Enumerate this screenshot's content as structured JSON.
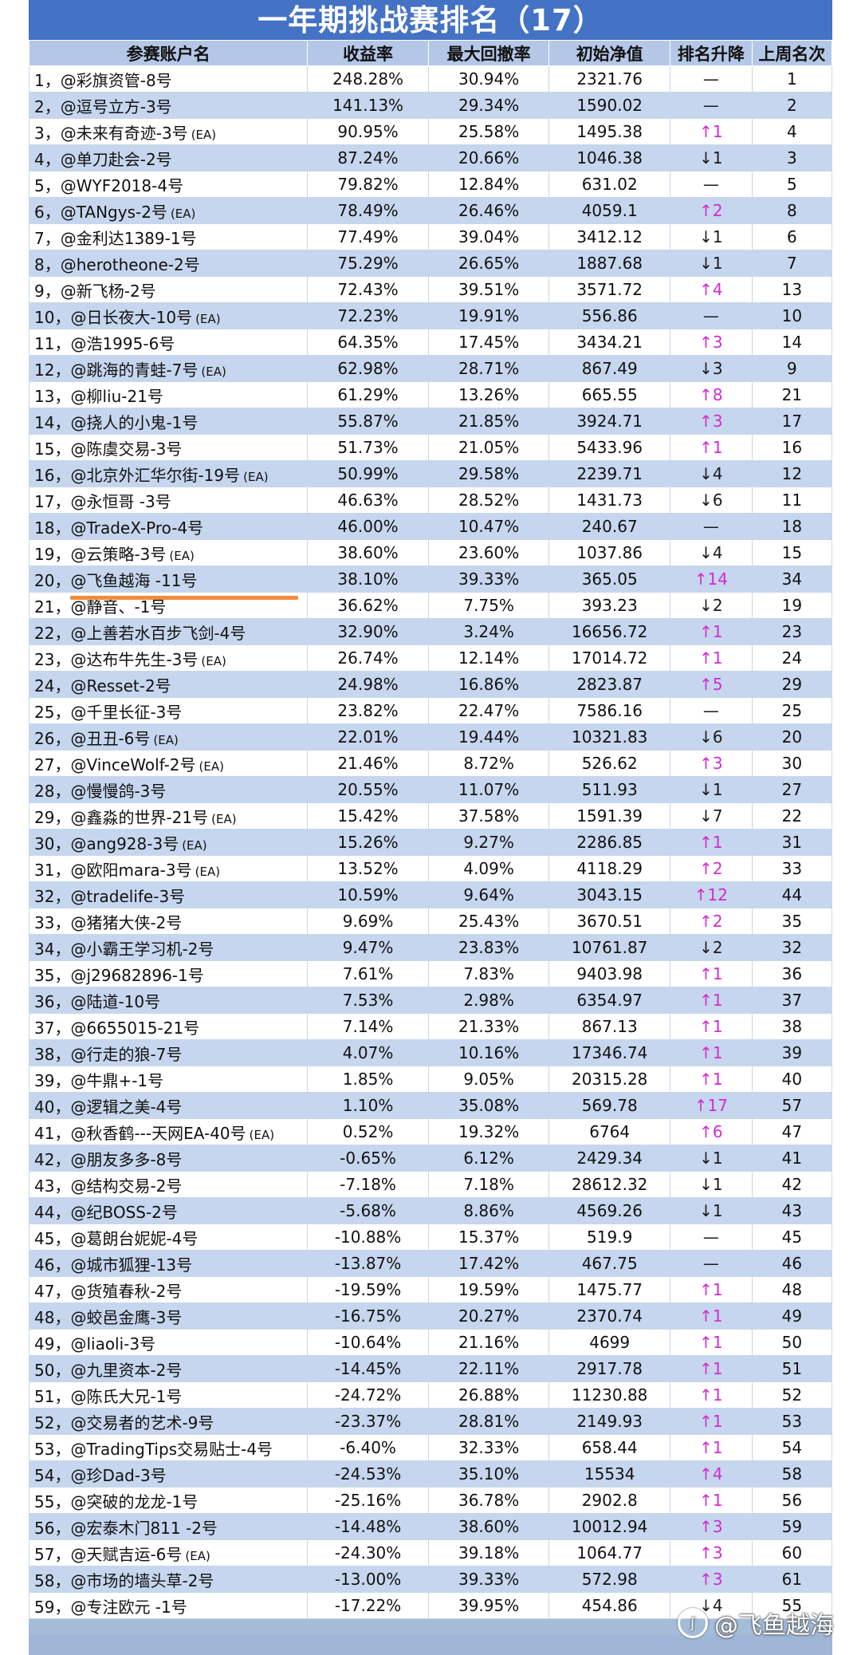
{
  "title": "一年期挑战赛排名（17）",
  "headers": [
    "参赛账户名",
    "收益率",
    "最大回撤率",
    "初始净值",
    "排名升降",
    "上周名次"
  ],
  "watermark": "@飞鱼越海",
  "rows": [
    {
      "rank": "1",
      "name": "@彩旗资管-8号",
      "ea": "",
      "ret": "248.28%",
      "dd": "30.94%",
      "nav": "2321.76",
      "chg": "—",
      "dir": "flat",
      "last": "1"
    },
    {
      "rank": "2",
      "name": "@逗号立方-3号",
      "ea": "",
      "ret": "141.13%",
      "dd": "29.34%",
      "nav": "1590.02",
      "chg": "—",
      "dir": "flat",
      "last": "2"
    },
    {
      "rank": "3",
      "name": "@未来有奇迹-3号",
      "ea": "(EA)",
      "ret": "90.95%",
      "dd": "25.58%",
      "nav": "1495.38",
      "chg": "↑1",
      "dir": "up",
      "last": "4"
    },
    {
      "rank": "4",
      "name": "@单刀赴会-2号",
      "ea": "",
      "ret": "87.24%",
      "dd": "20.66%",
      "nav": "1046.38",
      "chg": "↓1",
      "dir": "down",
      "last": "3"
    },
    {
      "rank": "5",
      "name": "@WYF2018-4号",
      "ea": "",
      "ret": "79.82%",
      "dd": "12.84%",
      "nav": "631.02",
      "chg": "—",
      "dir": "flat",
      "last": "5"
    },
    {
      "rank": "6",
      "name": "@TANgys-2号",
      "ea": "(EA)",
      "ret": "78.49%",
      "dd": "26.46%",
      "nav": "4059.1",
      "chg": "↑2",
      "dir": "up",
      "last": "8"
    },
    {
      "rank": "7",
      "name": "@金利达1389-1号",
      "ea": "",
      "ret": "77.49%",
      "dd": "39.04%",
      "nav": "3412.12",
      "chg": "↓1",
      "dir": "down",
      "last": "6"
    },
    {
      "rank": "8",
      "name": "@herotheone-2号",
      "ea": "",
      "ret": "75.29%",
      "dd": "26.65%",
      "nav": "1887.68",
      "chg": "↓1",
      "dir": "down",
      "last": "7"
    },
    {
      "rank": "9",
      "name": "@新飞杨-2号",
      "ea": "",
      "ret": "72.43%",
      "dd": "39.51%",
      "nav": "3571.72",
      "chg": "↑4",
      "dir": "up",
      "last": "13"
    },
    {
      "rank": "10",
      "name": "@日长夜大-10号",
      "ea": "(EA)",
      "ret": "72.23%",
      "dd": "19.91%",
      "nav": "556.86",
      "chg": "—",
      "dir": "flat",
      "last": "10"
    },
    {
      "rank": "11",
      "name": "@浩1995-6号",
      "ea": "",
      "ret": "64.35%",
      "dd": "17.45%",
      "nav": "3434.21",
      "chg": "↑3",
      "dir": "up",
      "last": "14"
    },
    {
      "rank": "12",
      "name": "@跳海的青蛙-7号",
      "ea": "(EA)",
      "ret": "62.98%",
      "dd": "28.71%",
      "nav": "867.49",
      "chg": "↓3",
      "dir": "down",
      "last": "9"
    },
    {
      "rank": "13",
      "name": "@柳liu-21号",
      "ea": "",
      "ret": "61.29%",
      "dd": "13.26%",
      "nav": "665.55",
      "chg": "↑8",
      "dir": "up",
      "last": "21"
    },
    {
      "rank": "14",
      "name": "@挠人的小鬼-1号",
      "ea": "",
      "ret": "55.87%",
      "dd": "21.85%",
      "nav": "3924.71",
      "chg": "↑3",
      "dir": "up",
      "last": "17"
    },
    {
      "rank": "15",
      "name": "@陈虞交易-3号",
      "ea": "",
      "ret": "51.73%",
      "dd": "21.05%",
      "nav": "5433.96",
      "chg": "↑1",
      "dir": "up",
      "last": "16"
    },
    {
      "rank": "16",
      "name": "@北京外汇华尔街-19号",
      "ea": "(EA)",
      "ret": "50.99%",
      "dd": "29.58%",
      "nav": "2239.71",
      "chg": "↓4",
      "dir": "down",
      "last": "12"
    },
    {
      "rank": "17",
      "name": "@永恒哥 -3号",
      "ea": "",
      "ret": "46.63%",
      "dd": "28.52%",
      "nav": "1431.73",
      "chg": "↓6",
      "dir": "down",
      "last": "11"
    },
    {
      "rank": "18",
      "name": "@TradeX-Pro-4号",
      "ea": "",
      "ret": "46.00%",
      "dd": "10.47%",
      "nav": "240.67",
      "chg": "—",
      "dir": "flat",
      "last": "18"
    },
    {
      "rank": "19",
      "name": "@云策略-3号",
      "ea": "(EA)",
      "ret": "38.60%",
      "dd": "23.60%",
      "nav": "1037.86",
      "chg": "↓4",
      "dir": "down",
      "last": "15"
    },
    {
      "rank": "20",
      "name": "@飞鱼越海 -11号",
      "ea": "",
      "ret": "38.10%",
      "dd": "39.33%",
      "nav": "365.05",
      "chg": "↑14",
      "dir": "up",
      "last": "34"
    },
    {
      "rank": "21",
      "name": "@静音、-1号",
      "ea": "",
      "ret": "36.62%",
      "dd": "7.75%",
      "nav": "393.23",
      "chg": "↓2",
      "dir": "down",
      "last": "19"
    },
    {
      "rank": "22",
      "name": "@上善若水百步飞剑-4号",
      "ea": "",
      "ret": "32.90%",
      "dd": "3.24%",
      "nav": "16656.72",
      "chg": "↑1",
      "dir": "up",
      "last": "23"
    },
    {
      "rank": "23",
      "name": "@达布牛先生-3号",
      "ea": "(EA)",
      "ret": "26.74%",
      "dd": "12.14%",
      "nav": "17014.72",
      "chg": "↑1",
      "dir": "up",
      "last": "24"
    },
    {
      "rank": "24",
      "name": "@Resset-2号",
      "ea": "",
      "ret": "24.98%",
      "dd": "16.86%",
      "nav": "2823.87",
      "chg": "↑5",
      "dir": "up",
      "last": "29"
    },
    {
      "rank": "25",
      "name": "@千里长征-3号",
      "ea": "",
      "ret": "23.82%",
      "dd": "22.47%",
      "nav": "7586.16",
      "chg": "—",
      "dir": "flat",
      "last": "25"
    },
    {
      "rank": "26",
      "name": "@丑丑-6号",
      "ea": "(EA)",
      "ret": "22.01%",
      "dd": "19.44%",
      "nav": "10321.83",
      "chg": "↓6",
      "dir": "down",
      "last": "20"
    },
    {
      "rank": "27",
      "name": "@VinceWolf-2号",
      "ea": "(EA)",
      "ret": "21.46%",
      "dd": "8.72%",
      "nav": "526.62",
      "chg": "↑3",
      "dir": "up",
      "last": "30"
    },
    {
      "rank": "28",
      "name": "@慢慢鸽-3号",
      "ea": "",
      "ret": "20.55%",
      "dd": "11.07%",
      "nav": "511.93",
      "chg": "↓1",
      "dir": "down",
      "last": "27"
    },
    {
      "rank": "29",
      "name": "@鑫淼的世界-21号",
      "ea": "(EA)",
      "ret": "15.42%",
      "dd": "37.58%",
      "nav": "1591.39",
      "chg": "↓7",
      "dir": "down",
      "last": "22"
    },
    {
      "rank": "30",
      "name": "@ang928-3号",
      "ea": "(EA)",
      "ret": "15.26%",
      "dd": "9.27%",
      "nav": "2286.85",
      "chg": "↑1",
      "dir": "up",
      "last": "31"
    },
    {
      "rank": "31",
      "name": "@欧阳mara-3号",
      "ea": "(EA)",
      "ret": "13.52%",
      "dd": "4.09%",
      "nav": "4118.29",
      "chg": "↑2",
      "dir": "up",
      "last": "33"
    },
    {
      "rank": "32",
      "name": "@tradelife-3号",
      "ea": "",
      "ret": "10.59%",
      "dd": "9.64%",
      "nav": "3043.15",
      "chg": "↑12",
      "dir": "up",
      "last": "44"
    },
    {
      "rank": "33",
      "name": "@猪猪大侠-2号",
      "ea": "",
      "ret": "9.69%",
      "dd": "25.43%",
      "nav": "3670.51",
      "chg": "↑2",
      "dir": "up",
      "last": "35"
    },
    {
      "rank": "34",
      "name": "@小霸王学习机-2号",
      "ea": "",
      "ret": "9.47%",
      "dd": "23.83%",
      "nav": "10761.87",
      "chg": "↓2",
      "dir": "down",
      "last": "32"
    },
    {
      "rank": "35",
      "name": "@j29682896-1号",
      "ea": "",
      "ret": "7.61%",
      "dd": "7.83%",
      "nav": "9403.98",
      "chg": "↑1",
      "dir": "up",
      "last": "36"
    },
    {
      "rank": "36",
      "name": "@陆道-10号",
      "ea": "",
      "ret": "7.53%",
      "dd": "2.98%",
      "nav": "6354.97",
      "chg": "↑1",
      "dir": "up",
      "last": "37"
    },
    {
      "rank": "37",
      "name": "@6655015-21号",
      "ea": "",
      "ret": "7.14%",
      "dd": "21.33%",
      "nav": "867.13",
      "chg": "↑1",
      "dir": "up",
      "last": "38"
    },
    {
      "rank": "38",
      "name": "@行走的狼-7号",
      "ea": "",
      "ret": "4.07%",
      "dd": "10.16%",
      "nav": "17346.74",
      "chg": "↑1",
      "dir": "up",
      "last": "39"
    },
    {
      "rank": "39",
      "name": "@牛鼎+-1号",
      "ea": "",
      "ret": "1.85%",
      "dd": "9.05%",
      "nav": "20315.28",
      "chg": "↑1",
      "dir": "up",
      "last": "40"
    },
    {
      "rank": "40",
      "name": "@逻辑之美-4号",
      "ea": "",
      "ret": "1.10%",
      "dd": "35.08%",
      "nav": "569.78",
      "chg": "↑17",
      "dir": "up",
      "last": "57"
    },
    {
      "rank": "41",
      "name": "@秋香鹤---天网EA-40号",
      "ea": "(EA)",
      "ret": "0.52%",
      "dd": "19.32%",
      "nav": "6764",
      "chg": "↑6",
      "dir": "up",
      "last": "47"
    },
    {
      "rank": "42",
      "name": "@朋友多多-8号",
      "ea": "",
      "ret": "-0.65%",
      "dd": "6.12%",
      "nav": "2429.34",
      "chg": "↓1",
      "dir": "down",
      "last": "41"
    },
    {
      "rank": "43",
      "name": "@结构交易-2号",
      "ea": "",
      "ret": "-7.18%",
      "dd": "7.18%",
      "nav": "28612.32",
      "chg": "↓1",
      "dir": "down",
      "last": "42"
    },
    {
      "rank": "44",
      "name": "@纪BOSS-2号",
      "ea": "",
      "ret": "-5.68%",
      "dd": "8.86%",
      "nav": "4569.26",
      "chg": "↓1",
      "dir": "down",
      "last": "43"
    },
    {
      "rank": "45",
      "name": "@葛朗台妮妮-4号",
      "ea": "",
      "ret": "-10.88%",
      "dd": "15.37%",
      "nav": "519.9",
      "chg": "—",
      "dir": "flat",
      "last": "45"
    },
    {
      "rank": "46",
      "name": "@城市狐狸-13号",
      "ea": "",
      "ret": "-13.87%",
      "dd": "17.42%",
      "nav": "467.75",
      "chg": "—",
      "dir": "flat",
      "last": "46"
    },
    {
      "rank": "47",
      "name": "@货殖春秋-2号",
      "ea": "",
      "ret": "-19.59%",
      "dd": "19.59%",
      "nav": "1475.77",
      "chg": "↑1",
      "dir": "up",
      "last": "48"
    },
    {
      "rank": "48",
      "name": "@蛟邑金鹰-3号",
      "ea": "",
      "ret": "-16.75%",
      "dd": "20.27%",
      "nav": "2370.74",
      "chg": "↑1",
      "dir": "up",
      "last": "49"
    },
    {
      "rank": "49",
      "name": "@liaoli-3号",
      "ea": "",
      "ret": "-10.64%",
      "dd": "21.16%",
      "nav": "4699",
      "chg": "↑1",
      "dir": "up",
      "last": "50"
    },
    {
      "rank": "50",
      "name": "@九里资本-2号",
      "ea": "",
      "ret": "-14.45%",
      "dd": "22.11%",
      "nav": "2917.78",
      "chg": "↑1",
      "dir": "up",
      "last": "51"
    },
    {
      "rank": "51",
      "name": "@陈氏大兄-1号",
      "ea": "",
      "ret": "-24.72%",
      "dd": "26.88%",
      "nav": "11230.88",
      "chg": "↑1",
      "dir": "up",
      "last": "52"
    },
    {
      "rank": "52",
      "name": "@交易者的艺术-9号",
      "ea": "",
      "ret": "-23.37%",
      "dd": "28.81%",
      "nav": "2149.93",
      "chg": "↑1",
      "dir": "up",
      "last": "53"
    },
    {
      "rank": "53",
      "name": "@TradingTips交易贴士-4号",
      "ea": "",
      "ret": "-6.40%",
      "dd": "32.33%",
      "nav": "658.44",
      "chg": "↑1",
      "dir": "up",
      "last": "54"
    },
    {
      "rank": "54",
      "name": "@珍Dad-3号",
      "ea": "",
      "ret": "-24.53%",
      "dd": "35.10%",
      "nav": "15534",
      "chg": "↑4",
      "dir": "up",
      "last": "58"
    },
    {
      "rank": "55",
      "name": "@突破的龙龙-1号",
      "ea": "",
      "ret": "-25.16%",
      "dd": "36.78%",
      "nav": "2902.8",
      "chg": "↑1",
      "dir": "up",
      "last": "56"
    },
    {
      "rank": "56",
      "name": "@宏泰木门811 -2号",
      "ea": "",
      "ret": "-14.48%",
      "dd": "38.60%",
      "nav": "10012.94",
      "chg": "↑3",
      "dir": "up",
      "last": "59"
    },
    {
      "rank": "57",
      "name": "@天赋吉运-6号",
      "ea": "(EA)",
      "ret": "-24.30%",
      "dd": "39.18%",
      "nav": "1064.77",
      "chg": "↑3",
      "dir": "up",
      "last": "60"
    },
    {
      "rank": "58",
      "name": "@市场的墙头草-2号",
      "ea": "",
      "ret": "-13.00%",
      "dd": "39.33%",
      "nav": "572.98",
      "chg": "↑3",
      "dir": "up",
      "last": "61"
    },
    {
      "rank": "59",
      "name": "@专注欧元 -1号",
      "ea": "",
      "ret": "-17.22%",
      "dd": "39.95%",
      "nav": "454.86",
      "chg": "↓4",
      "dir": "down",
      "last": "55"
    }
  ],
  "colors": {
    "up": "#d22ccf",
    "down": "#1a1a1a",
    "header_bg": "#4472c4",
    "highlight": "#f28b3b"
  }
}
